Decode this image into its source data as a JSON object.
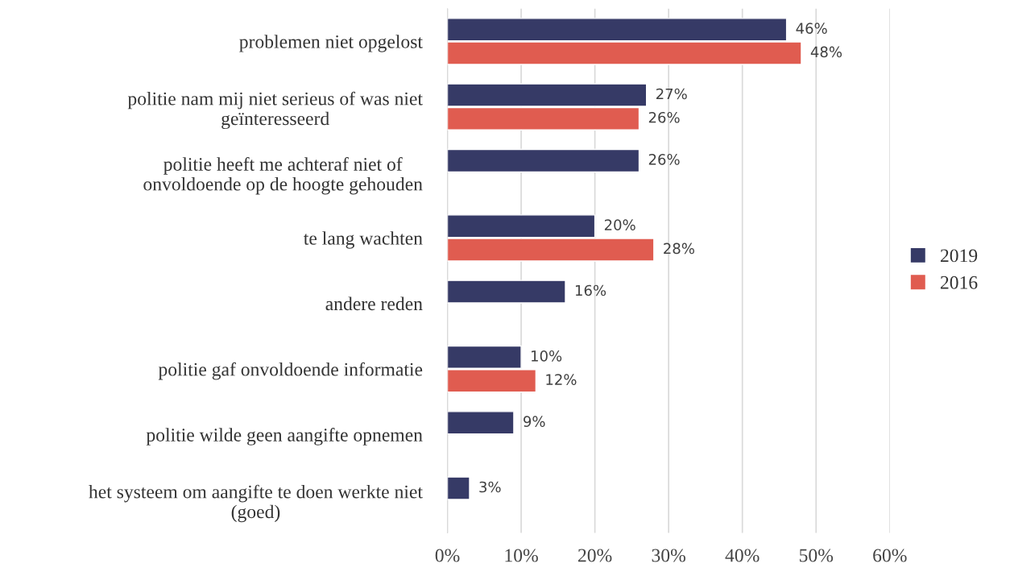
{
  "chart_data": {
    "type": "bar",
    "orientation": "horizontal",
    "categories": [
      "problemen niet opgelost",
      "politie nam mij niet serieus of was niet\ngeïnteresseerd",
      "politie heeft me achteraf niet of\nonvoldoende op de hoogte gehouden",
      "te lang wachten",
      "andere reden",
      "politie gaf onvoldoende informatie",
      "politie wilde geen aangifte opnemen",
      "het systeem om aangifte te doen werkte niet\n(goed)"
    ],
    "series": [
      {
        "name": "2019",
        "color": "#363a66",
        "values": [
          46,
          27,
          26,
          20,
          16,
          10,
          9,
          3
        ],
        "value_labels": [
          "46%",
          "27%",
          "26%",
          "20%",
          "16%",
          "10%",
          "9%",
          "3%"
        ]
      },
      {
        "name": "2016",
        "color": "#e05c50",
        "values": [
          48,
          26,
          null,
          28,
          null,
          12,
          null,
          null
        ],
        "value_labels": [
          "48%",
          "26%",
          null,
          "28%",
          null,
          "12%",
          null,
          null
        ]
      }
    ],
    "xlim": [
      0,
      60
    ],
    "xticks": [
      {
        "value": 0,
        "label": "0%"
      },
      {
        "value": 10,
        "label": "10%"
      },
      {
        "value": 20,
        "label": "20%"
      },
      {
        "value": 30,
        "label": "30%"
      },
      {
        "value": 40,
        "label": "40%"
      },
      {
        "value": 50,
        "label": "50%"
      },
      {
        "value": 60,
        "label": "60%"
      }
    ],
    "grid": "x",
    "legend": "right"
  }
}
